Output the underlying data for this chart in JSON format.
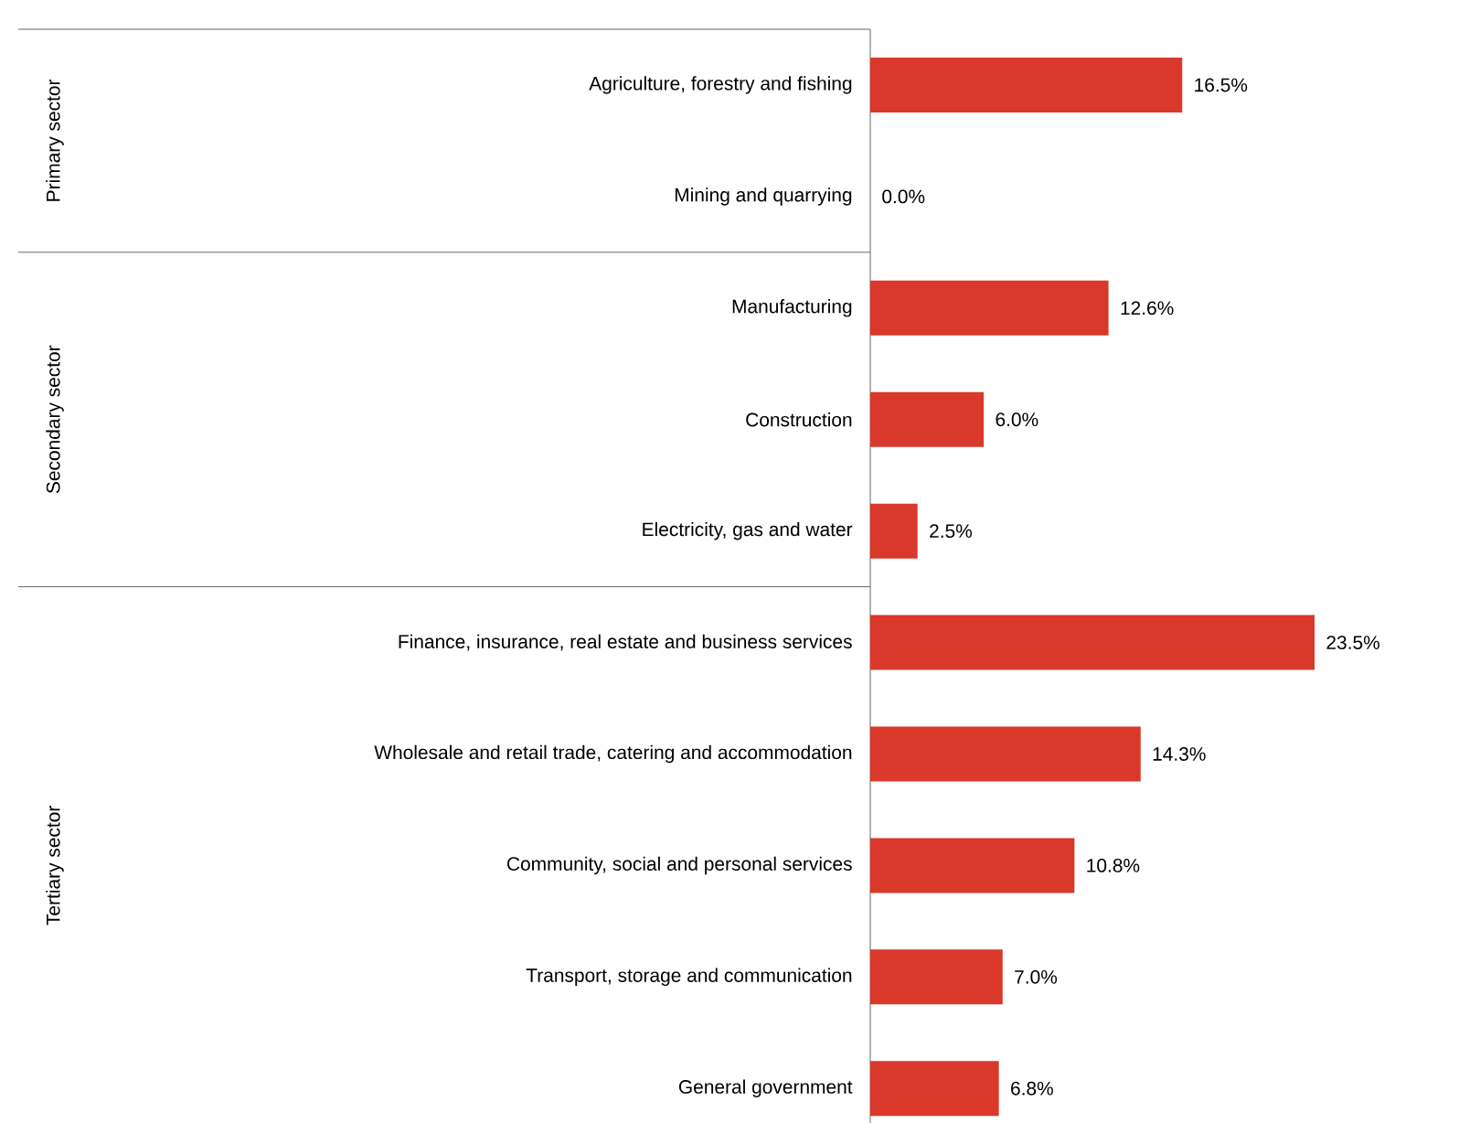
{
  "chart_data": {
    "type": "bar",
    "orientation": "horizontal",
    "tick_labels": "y",
    "color": "#d9382b",
    "categories": [
      "Agriculture, forestry and fishing",
      "Mining and quarrying",
      "Manufacturing",
      "Construction",
      "Electricity, gas and water",
      "Finance, insurance, real estate and business services",
      "Wholesale and retail trade, catering and accommodation",
      "Community, social and personal services",
      "Transport, storage and communication",
      "General government"
    ],
    "values": [
      16.5,
      0.0,
      12.6,
      6.0,
      2.5,
      23.5,
      14.3,
      10.8,
      7.0,
      6.8
    ],
    "value_labels": [
      "16.5%",
      "0.0%",
      "12.6%",
      "6.0%",
      "2.5%",
      "23.5%",
      "14.3%",
      "10.8%",
      "7.0%",
      "6.8%"
    ],
    "annotations": [
      "Primary sector",
      "Secondary sector",
      "Tertiary sector"
    ]
  }
}
